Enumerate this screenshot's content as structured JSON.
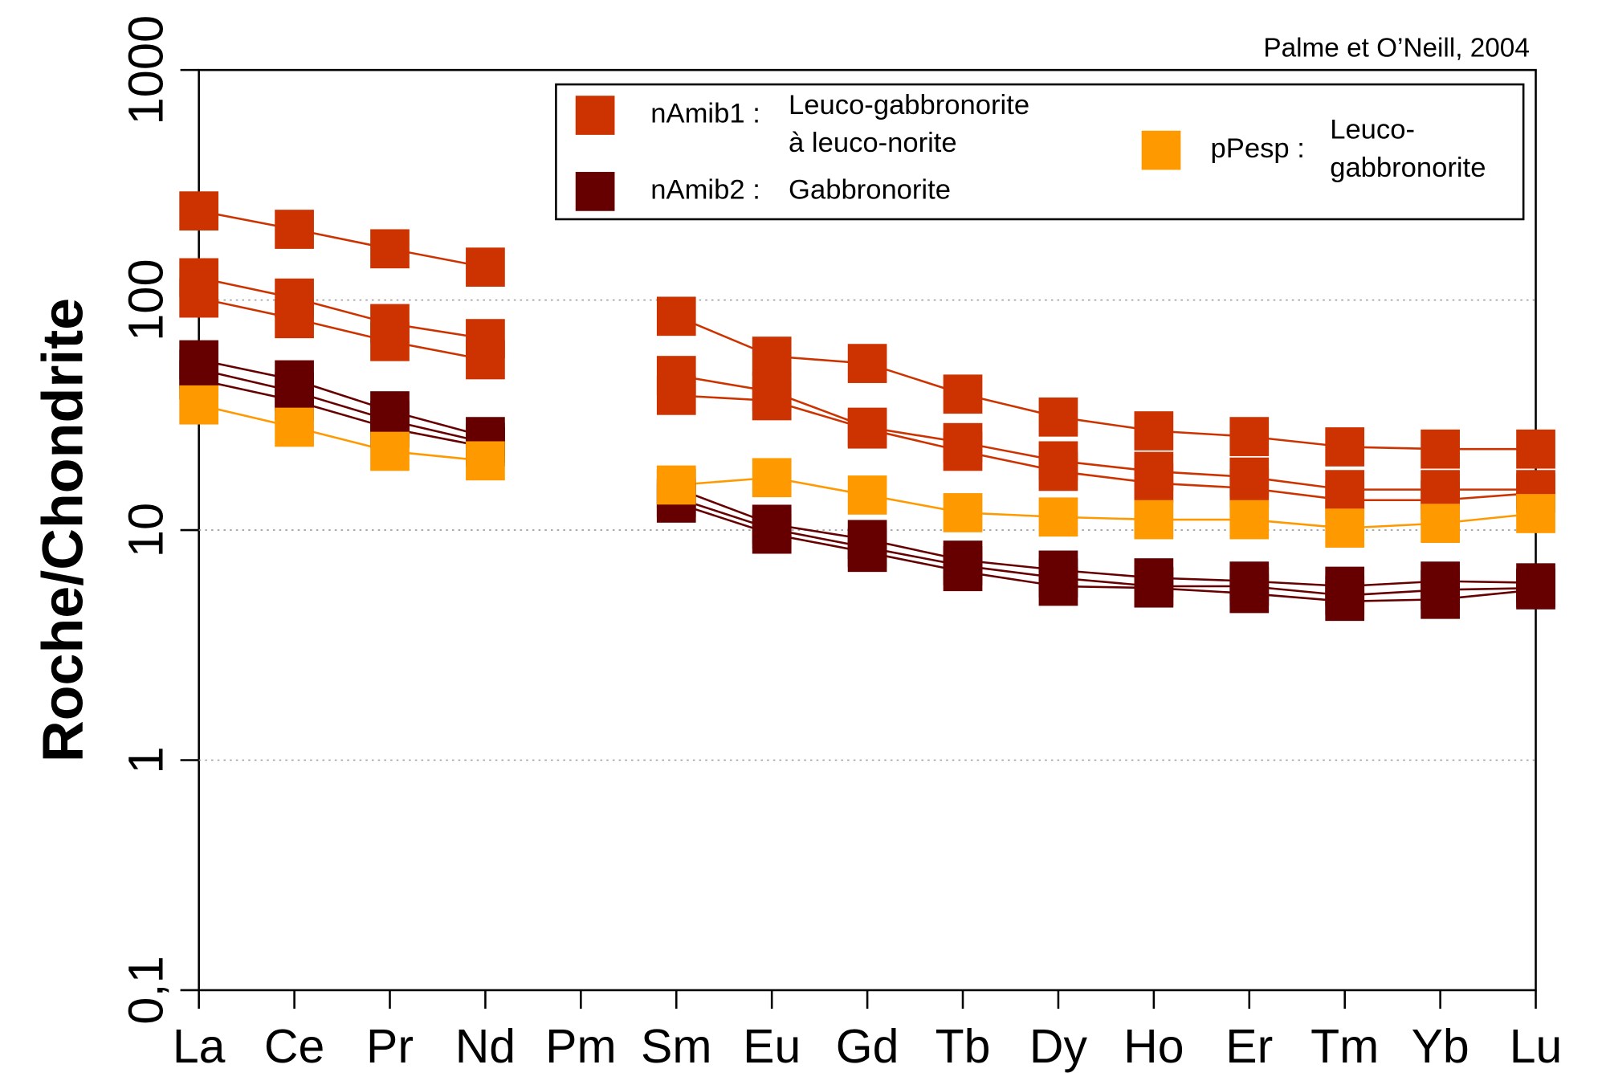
{
  "chart_data": {
    "type": "line",
    "note": "Palme et O’Neill, 2004",
    "ylabel": "Roche/Chondrite",
    "log_y": true,
    "grid": true,
    "categories": [
      "La",
      "Ce",
      "Pr",
      "Nd",
      "Pm",
      "Sm",
      "Eu",
      "Gd",
      "Tb",
      "Dy",
      "Ho",
      "Er",
      "Tm",
      "Yb",
      "Lu"
    ],
    "ylim": [
      0.1,
      1000
    ],
    "yticks": [
      {
        "value": 0.1,
        "label": "0,1"
      },
      1,
      10,
      100,
      1000
    ],
    "series": [
      {
        "name": "nAmib1 :",
        "description": [
          "Leuco-gabbronorite",
          "à leuco-norite"
        ],
        "color": "#cc3300",
        "lines": [
          [
            244,
            203,
            167,
            139,
            null,
            85,
            57,
            53,
            39,
            31,
            27,
            25.5,
            23,
            22.5,
            22.5
          ],
          [
            125,
            102,
            79,
            68,
            null,
            47,
            40,
            28,
            24,
            20,
            18,
            17,
            15,
            15,
            15
          ],
          [
            102,
            83,
            66,
            55,
            null,
            38.5,
            36.5,
            27.5,
            22,
            18,
            16,
            15.2,
            13.5,
            13.5,
            14.5
          ]
        ]
      },
      {
        "name": "nAmib2 :",
        "description": [
          "Gabbronorite"
        ],
        "color": "#660000",
        "lines": [
          [
            55,
            45,
            33,
            25.5,
            null,
            15.2,
            10.6,
            9.1,
            7.4,
            6.7,
            6.2,
            6.0,
            5.7,
            6.0,
            5.9
          ],
          [
            50,
            40,
            30,
            24,
            null,
            13.8,
            10.1,
            8.4,
            7.0,
            6.2,
            5.7,
            5.7,
            5.2,
            5.5,
            5.6
          ],
          [
            45,
            36.5,
            27.7,
            23,
            null,
            13.1,
            9.6,
            8.0,
            6.6,
            5.7,
            5.6,
            5.3,
            4.9,
            5.0,
            5.5
          ]
        ]
      },
      {
        "name": "pPesp :",
        "description": [
          "Leuco-",
          "gabbronorite"
        ],
        "color": "#ff9900",
        "lines": [
          [
            35,
            28,
            22,
            20,
            null,
            15.7,
            16.9,
            14.2,
            11.9,
            11.4,
            11.1,
            11.1,
            10.2,
            10.7,
            11.8
          ]
        ]
      }
    ]
  }
}
